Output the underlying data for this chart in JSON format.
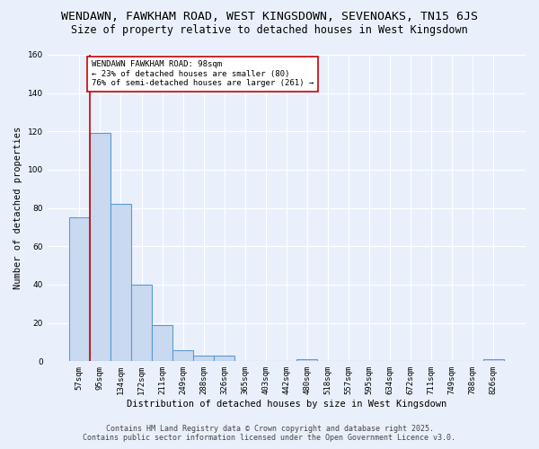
{
  "title1": "WENDAWN, FAWKHAM ROAD, WEST KINGSDOWN, SEVENOAKS, TN15 6JS",
  "title2": "Size of property relative to detached houses in West Kingsdown",
  "xlabel": "Distribution of detached houses by size in West Kingsdown",
  "ylabel": "Number of detached properties",
  "categories": [
    "57sqm",
    "95sqm",
    "134sqm",
    "172sqm",
    "211sqm",
    "249sqm",
    "288sqm",
    "326sqm",
    "365sqm",
    "403sqm",
    "442sqm",
    "480sqm",
    "518sqm",
    "557sqm",
    "595sqm",
    "634sqm",
    "672sqm",
    "711sqm",
    "749sqm",
    "788sqm",
    "826sqm"
  ],
  "values": [
    75,
    119,
    82,
    40,
    19,
    6,
    3,
    3,
    0,
    0,
    0,
    1,
    0,
    0,
    0,
    0,
    0,
    0,
    0,
    0,
    1
  ],
  "bar_color": "#c9d9f0",
  "bar_edge_color": "#5b9bd5",
  "bar_edge_width": 0.8,
  "ylim": [
    0,
    160
  ],
  "yticks": [
    0,
    20,
    40,
    60,
    80,
    100,
    120,
    140,
    160
  ],
  "vline_x_idx": 1,
  "vline_color": "#cc0000",
  "annotation_text": "WENDAWN FAWKHAM ROAD: 98sqm\n← 23% of detached houses are smaller (80)\n76% of semi-detached houses are larger (261) →",
  "annotation_box_color": "white",
  "annotation_box_edge_color": "#cc0000",
  "footer1": "Contains HM Land Registry data © Crown copyright and database right 2025.",
  "footer2": "Contains public sector information licensed under the Open Government Licence v3.0.",
  "bg_color": "#eaf0fb",
  "plot_bg_color": "#eaf0fb",
  "grid_color": "white",
  "title_fontsize": 9.5,
  "subtitle_fontsize": 8.5,
  "axis_label_fontsize": 7.5,
  "tick_fontsize": 6.5,
  "annotation_fontsize": 6.5,
  "footer_fontsize": 6.0
}
